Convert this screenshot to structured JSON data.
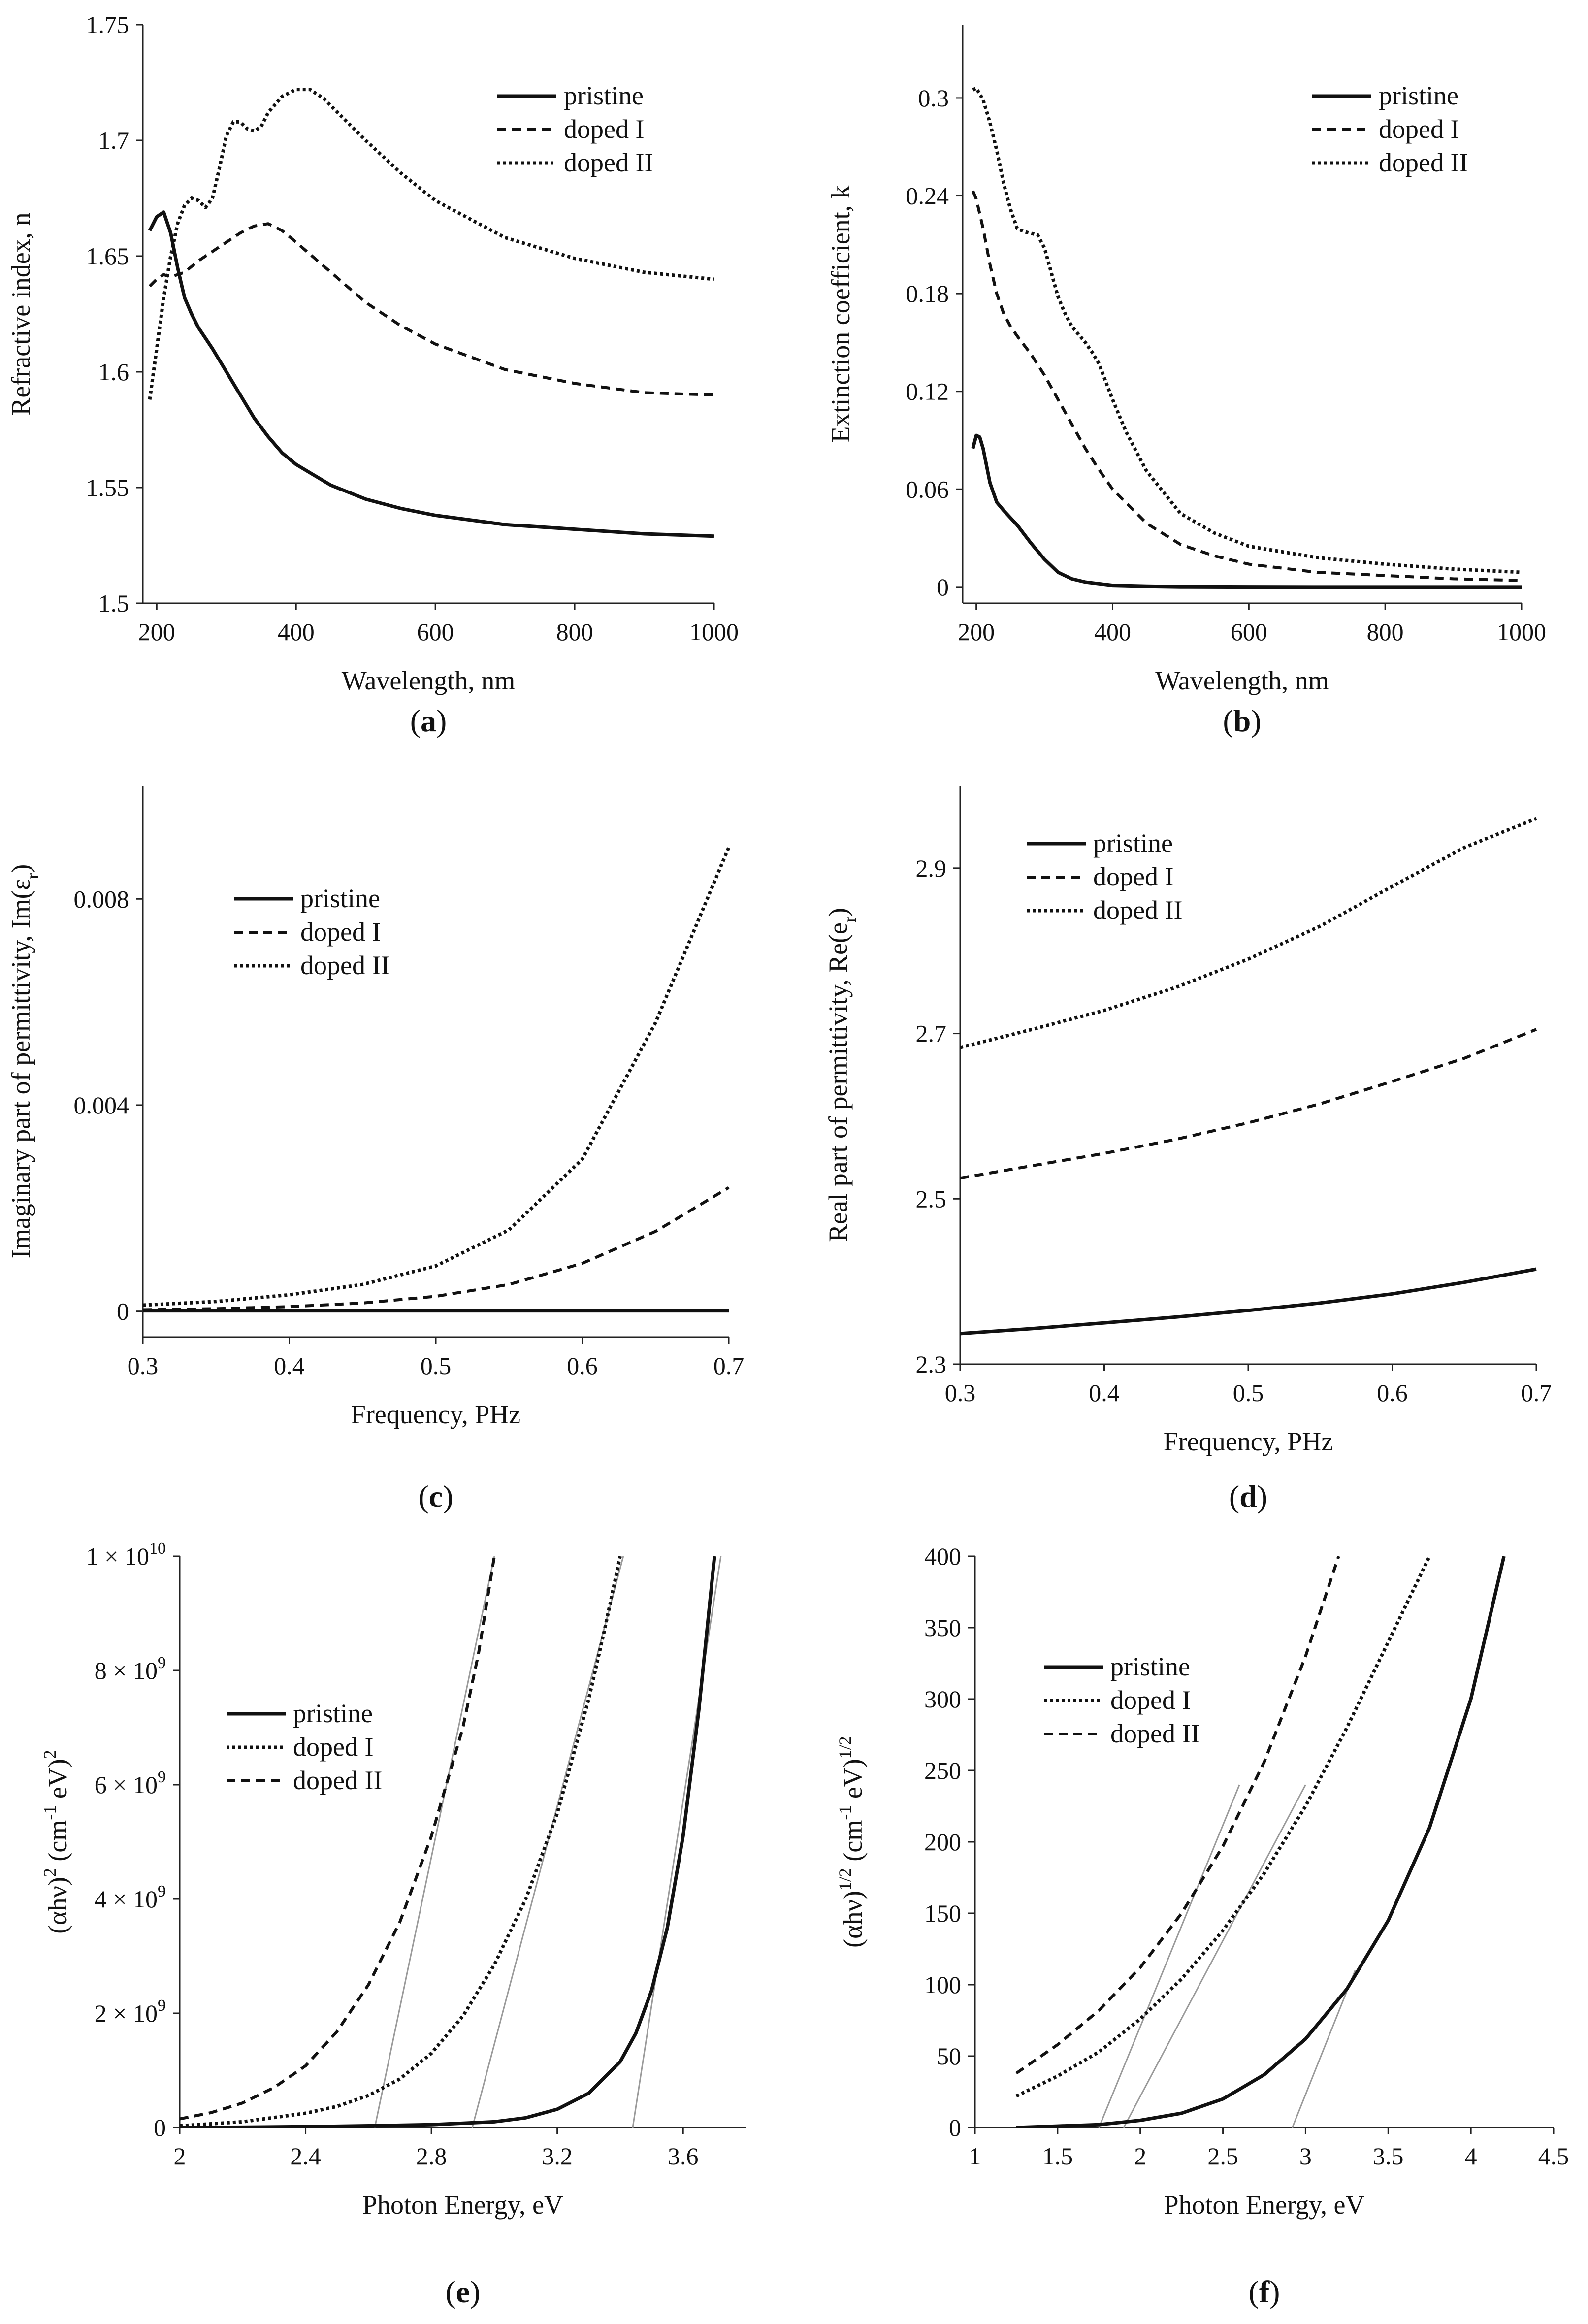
{
  "chart_data": [
    {
      "id": "a",
      "caption": "a",
      "type": "line",
      "xlabel": "Wavelength, nm",
      "ylabel": "Refractive index, n",
      "xlim": [
        180,
        1000
      ],
      "ylim": [
        1.5,
        1.75
      ],
      "xticks": [
        200,
        400,
        600,
        800,
        1000
      ],
      "xtick_labels": [
        "200",
        "400",
        "600",
        "800",
        "1000"
      ],
      "yticks": [
        1.5,
        1.55,
        1.6,
        1.65,
        1.7,
        1.75
      ],
      "ytick_labels": [
        "1.5",
        "1.55",
        "1.6",
        "1.65",
        "1.7",
        "1.75"
      ],
      "legend": "top-right",
      "grid": false,
      "series": [
        {
          "name": "pristine",
          "style": "solid",
          "x": [
            190,
            200,
            210,
            220,
            230,
            240,
            250,
            260,
            280,
            300,
            320,
            340,
            360,
            380,
            400,
            450,
            500,
            550,
            600,
            700,
            800,
            900,
            1000
          ],
          "y": [
            1.661,
            1.667,
            1.669,
            1.66,
            1.645,
            1.632,
            1.625,
            1.619,
            1.61,
            1.6,
            1.59,
            1.58,
            1.572,
            1.565,
            1.56,
            1.551,
            1.545,
            1.541,
            1.538,
            1.534,
            1.532,
            1.53,
            1.529
          ]
        },
        {
          "name": "doped I",
          "style": "dashed",
          "x": [
            190,
            200,
            210,
            220,
            240,
            260,
            280,
            300,
            320,
            340,
            360,
            380,
            400,
            450,
            500,
            550,
            600,
            700,
            800,
            900,
            1000
          ],
          "y": [
            1.637,
            1.64,
            1.642,
            1.641,
            1.643,
            1.648,
            1.652,
            1.656,
            1.66,
            1.663,
            1.664,
            1.661,
            1.656,
            1.643,
            1.63,
            1.62,
            1.612,
            1.601,
            1.595,
            1.591,
            1.59
          ]
        },
        {
          "name": "doped II",
          "style": "dotted",
          "x": [
            190,
            200,
            210,
            220,
            230,
            240,
            250,
            260,
            270,
            280,
            290,
            300,
            310,
            320,
            330,
            340,
            350,
            360,
            380,
            400,
            420,
            440,
            460,
            500,
            550,
            600,
            700,
            800,
            900,
            1000
          ],
          "y": [
            1.588,
            1.61,
            1.632,
            1.65,
            1.664,
            1.672,
            1.675,
            1.674,
            1.671,
            1.675,
            1.688,
            1.702,
            1.708,
            1.708,
            1.705,
            1.704,
            1.706,
            1.712,
            1.719,
            1.722,
            1.722,
            1.718,
            1.712,
            1.7,
            1.686,
            1.674,
            1.658,
            1.649,
            1.643,
            1.64
          ]
        }
      ]
    },
    {
      "id": "b",
      "caption": "b",
      "type": "line",
      "xlabel": "Wavelength, nm",
      "ylabel": "Extinction coefficient, k",
      "xlim": [
        180,
        1000
      ],
      "ylim": [
        -0.01,
        0.345
      ],
      "xticks": [
        200,
        400,
        600,
        800,
        1000
      ],
      "xtick_labels": [
        "200",
        "400",
        "600",
        "800",
        "1000"
      ],
      "yticks": [
        0,
        0.06,
        0.12,
        0.18,
        0.24,
        0.3
      ],
      "ytick_labels": [
        "0",
        "0.06",
        "0.12",
        "0.18",
        "0.24",
        "0.3"
      ],
      "legend": "top-right",
      "grid": false,
      "series": [
        {
          "name": "pristine",
          "style": "solid",
          "x": [
            195,
            200,
            205,
            210,
            220,
            230,
            240,
            260,
            280,
            300,
            320,
            340,
            360,
            380,
            400,
            450,
            500,
            600,
            700,
            800,
            900,
            1000
          ],
          "y": [
            0.085,
            0.093,
            0.092,
            0.085,
            0.064,
            0.052,
            0.047,
            0.038,
            0.027,
            0.017,
            0.009,
            0.005,
            0.003,
            0.002,
            0.001,
            0.0005,
            0.0002,
            0.0001,
            0,
            0,
            0,
            0
          ]
        },
        {
          "name": "doped I",
          "style": "dashed",
          "x": [
            195,
            200,
            210,
            220,
            230,
            240,
            250,
            260,
            280,
            300,
            320,
            340,
            360,
            380,
            400,
            450,
            500,
            550,
            600,
            700,
            800,
            900,
            1000
          ],
          "y": [
            0.243,
            0.238,
            0.22,
            0.198,
            0.18,
            0.168,
            0.16,
            0.154,
            0.143,
            0.13,
            0.115,
            0.1,
            0.085,
            0.072,
            0.06,
            0.039,
            0.026,
            0.019,
            0.014,
            0.009,
            0.007,
            0.005,
            0.004
          ]
        },
        {
          "name": "doped II",
          "style": "dotted",
          "x": [
            195,
            200,
            210,
            220,
            230,
            240,
            250,
            260,
            270,
            280,
            290,
            300,
            310,
            320,
            330,
            340,
            350,
            360,
            370,
            380,
            400,
            420,
            450,
            500,
            550,
            600,
            700,
            800,
            900,
            1000
          ],
          "y": [
            0.305,
            0.306,
            0.299,
            0.285,
            0.268,
            0.248,
            0.232,
            0.22,
            0.218,
            0.217,
            0.216,
            0.208,
            0.193,
            0.178,
            0.168,
            0.16,
            0.155,
            0.15,
            0.144,
            0.137,
            0.115,
            0.095,
            0.071,
            0.045,
            0.033,
            0.025,
            0.018,
            0.014,
            0.011,
            0.009
          ]
        }
      ]
    },
    {
      "id": "c",
      "caption": "c",
      "type": "line",
      "xlabel": "Frequency, PHz",
      "ylabel": "Imaginary part of permittivity, Im(ε",
      "ylabel_sub": "r",
      "ylabel_suffix": ")",
      "xlim": [
        0.3,
        0.7
      ],
      "ylim": [
        -0.0005,
        0.0102
      ],
      "xticks": [
        0.3,
        0.4,
        0.5,
        0.6,
        0.7
      ],
      "xtick_labels": [
        "0.3",
        "0.4",
        "0.5",
        "0.6",
        "0.7"
      ],
      "yticks": [
        0,
        0.004,
        0.008
      ],
      "ytick_labels": [
        "0",
        "0.004",
        "0.008"
      ],
      "legend": "upper-left",
      "grid": false,
      "series": [
        {
          "name": "pristine",
          "style": "solid",
          "x": [
            0.3,
            0.35,
            0.4,
            0.45,
            0.5,
            0.55,
            0.6,
            0.65,
            0.7
          ],
          "y": [
            1e-05,
            1e-05,
            1e-05,
            1e-05,
            1e-05,
            1e-05,
            1e-05,
            1e-05,
            1e-05
          ]
        },
        {
          "name": "doped I",
          "style": "dashed",
          "x": [
            0.3,
            0.35,
            0.4,
            0.45,
            0.5,
            0.55,
            0.6,
            0.65,
            0.7
          ],
          "y": [
            3e-05,
            5e-05,
            9e-05,
            0.00016,
            0.00029,
            0.00052,
            0.00093,
            0.00155,
            0.0024
          ]
        },
        {
          "name": "doped II",
          "style": "dotted",
          "x": [
            0.3,
            0.35,
            0.4,
            0.45,
            0.5,
            0.55,
            0.6,
            0.65,
            0.7
          ],
          "y": [
            0.00012,
            0.00019,
            0.00032,
            0.00052,
            0.00088,
            0.00158,
            0.00295,
            0.0056,
            0.009
          ]
        }
      ]
    },
    {
      "id": "d",
      "caption": "d",
      "type": "line",
      "xlabel": "Frequency, PHz",
      "ylabel": "Real part of permittivity, Re(e",
      "ylabel_sub": "r",
      "ylabel_suffix": ")",
      "xlim": [
        0.3,
        0.7
      ],
      "ylim": [
        2.3,
        3.0
      ],
      "xticks": [
        0.3,
        0.4,
        0.5,
        0.6,
        0.7
      ],
      "xtick_labels": [
        "0.3",
        "0.4",
        "0.5",
        "0.6",
        "0.7"
      ],
      "yticks": [
        2.3,
        2.5,
        2.7,
        2.9
      ],
      "ytick_labels": [
        "2.3",
        "2.5",
        "2.7",
        "2.9"
      ],
      "legend": "upper-left",
      "grid": false,
      "series": [
        {
          "name": "pristine",
          "style": "solid",
          "x": [
            0.3,
            0.35,
            0.4,
            0.45,
            0.5,
            0.55,
            0.6,
            0.65,
            0.7
          ],
          "y": [
            2.337,
            2.343,
            2.35,
            2.357,
            2.365,
            2.374,
            2.385,
            2.399,
            2.415
          ]
        },
        {
          "name": "doped I",
          "style": "dashed",
          "x": [
            0.3,
            0.35,
            0.4,
            0.45,
            0.5,
            0.55,
            0.6,
            0.65,
            0.7
          ],
          "y": [
            2.525,
            2.54,
            2.555,
            2.572,
            2.592,
            2.615,
            2.642,
            2.67,
            2.705
          ]
        },
        {
          "name": "doped II",
          "style": "dotted",
          "x": [
            0.3,
            0.35,
            0.4,
            0.45,
            0.5,
            0.55,
            0.6,
            0.65,
            0.7
          ],
          "y": [
            2.683,
            2.705,
            2.728,
            2.756,
            2.79,
            2.83,
            2.878,
            2.925,
            2.96
          ]
        }
      ]
    },
    {
      "id": "e",
      "caption": "e",
      "type": "line",
      "xlabel": "Photon Energy, eV",
      "ylabel": "(αhν)",
      "ylabel_sup1": "2",
      "ylabel_mid": " (cm",
      "ylabel_sup2": "-1",
      "ylabel_end": " eV)",
      "ylabel_sup3": "2",
      "xlim": [
        2,
        3.8
      ],
      "ylim": [
        0,
        10000000000
      ],
      "xticks": [
        2,
        2.4,
        2.8,
        3.2,
        3.6
      ],
      "xtick_labels": [
        "2",
        "2.4",
        "2.8",
        "3.2",
        "3.6"
      ],
      "yticks": [
        0,
        2000000000,
        4000000000,
        6000000000,
        8000000000,
        10000000000
      ],
      "ytick_labels": [
        "0",
        "2 × 10",
        "4 × 10",
        "6 × 10",
        "8 × 10",
        "1 × 10"
      ],
      "ytick_exponents": [
        "",
        "9",
        "9",
        "9",
        "9",
        "10"
      ],
      "legend": "upper-left",
      "grid": false,
      "series": [
        {
          "name": "pristine",
          "style": "solid",
          "x": [
            2,
            2.2,
            2.4,
            2.6,
            2.8,
            3.0,
            3.1,
            3.2,
            3.3,
            3.4,
            3.45,
            3.5,
            3.55,
            3.6,
            3.65,
            3.7
          ],
          "y": [
            0,
            5000000,
            15000000,
            30000000,
            50000000,
            100000000,
            170000000,
            320000000,
            600000000,
            1150000000,
            1650000000,
            2400000000,
            3500000000,
            5100000000,
            7300000000,
            10000000000
          ]
        },
        {
          "name": "doped I",
          "style": "dotted",
          "x": [
            2,
            2.2,
            2.4,
            2.5,
            2.6,
            2.7,
            2.8,
            2.9,
            3.0,
            3.1,
            3.2,
            3.3,
            3.35,
            3.4
          ],
          "y": [
            30000000,
            100000000,
            250000000,
            370000000,
            560000000,
            850000000,
            1300000000,
            1950000000,
            2850000000,
            4000000000,
            5500000000,
            7500000000,
            8700000000,
            10000000000
          ]
        },
        {
          "name": "doped II",
          "style": "dashed",
          "x": [
            2,
            2.1,
            2.2,
            2.3,
            2.4,
            2.5,
            2.6,
            2.7,
            2.8,
            2.9,
            2.95,
            3.0
          ],
          "y": [
            150000000,
            260000000,
            430000000,
            700000000,
            1080000000,
            1680000000,
            2500000000,
            3600000000,
            5100000000,
            7000000000,
            8300000000,
            10000000000
          ]
        }
      ],
      "fit_lines": [
        {
          "for": "pristine",
          "x": [
            3.44,
            3.72
          ],
          "y": [
            0,
            10000000000
          ]
        },
        {
          "for": "doped I",
          "x": [
            2.93,
            3.41
          ],
          "y": [
            0,
            10000000000
          ]
        },
        {
          "for": "doped II",
          "x": [
            2.62,
            3.0
          ],
          "y": [
            0,
            10000000000
          ]
        }
      ]
    },
    {
      "id": "f",
      "caption": "f",
      "type": "line",
      "xlabel": "Photon Energy, eV",
      "ylabel": "(αhν)",
      "ylabel_sup1": "1/2",
      "ylabel_mid": " (cm",
      "ylabel_sup2": "-1",
      "ylabel_end": " eV)",
      "ylabel_sup3": "1/2",
      "xlim": [
        1,
        4.5
      ],
      "ylim": [
        0,
        400
      ],
      "xticks": [
        1,
        1.5,
        2,
        2.5,
        3,
        3.5,
        4,
        4.5
      ],
      "xtick_labels": [
        "1",
        "1.5",
        "2",
        "2.5",
        "3",
        "3.5",
        "4",
        "4.5"
      ],
      "yticks": [
        0,
        50,
        100,
        150,
        200,
        250,
        300,
        350,
        400
      ],
      "ytick_labels": [
        "0",
        "50",
        "100",
        "150",
        "200",
        "250",
        "300",
        "350",
        "400"
      ],
      "legend": "upper-left",
      "grid": false,
      "series": [
        {
          "name": "pristine",
          "style": "solid",
          "x": [
            1.25,
            1.5,
            1.75,
            2.0,
            2.25,
            2.5,
            2.75,
            3.0,
            3.25,
            3.5,
            3.75,
            4.0,
            4.2
          ],
          "y": [
            0,
            1,
            2,
            5,
            10,
            20,
            37,
            62,
            97,
            145,
            210,
            300,
            400
          ]
        },
        {
          "name": "doped I",
          "style": "dotted",
          "x": [
            1.25,
            1.5,
            1.75,
            2.0,
            2.25,
            2.5,
            2.75,
            3.0,
            3.25,
            3.5,
            3.75
          ],
          "y": [
            22,
            36,
            53,
            76,
            104,
            138,
            178,
            225,
            280,
            340,
            400
          ]
        },
        {
          "name": "doped II",
          "style": "dashed",
          "x": [
            1.25,
            1.5,
            1.75,
            2.0,
            2.25,
            2.5,
            2.75,
            3.0,
            3.2
          ],
          "y": [
            38,
            58,
            82,
            112,
            150,
            197,
            256,
            330,
            400
          ]
        }
      ],
      "fit_lines": [
        {
          "for": "pristine",
          "x": [
            2.92,
            3.3
          ],
          "y": [
            0,
            110
          ]
        },
        {
          "for": "doped I",
          "x": [
            1.9,
            3.0
          ],
          "y": [
            0,
            240
          ]
        },
        {
          "for": "doped II",
          "x": [
            1.75,
            2.6
          ],
          "y": [
            0,
            240
          ]
        }
      ]
    }
  ]
}
